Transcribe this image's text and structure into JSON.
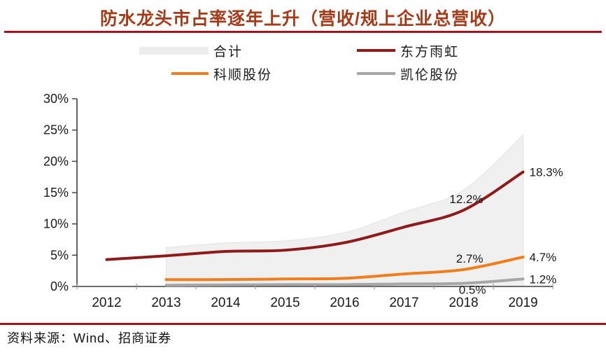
{
  "title": "防水龙头市占率逐年上升（营收/规上企业总营收）",
  "source": "资料来源：Wind、招商证券",
  "colors": {
    "title_accent": "#a43a17",
    "rule_red": "#a31518",
    "yuhong_red": "#8e1b1b",
    "keshun_orange": "#ee7e1e",
    "kailun_gray": "#a6a6a6",
    "total_area_fill": "#f0f0f0",
    "axis": "#3d3d3d",
    "text": "#1a1a1a"
  },
  "legend": {
    "items": [
      {
        "label": "合计",
        "color": "#ececec",
        "swatch": "area"
      },
      {
        "label": "东方雨虹",
        "color": "#8e1b1b",
        "swatch": "line"
      },
      {
        "label": "科顺股份",
        "color": "#ee7e1e",
        "swatch": "line"
      },
      {
        "label": "凯伦股份",
        "color": "#a6a6a6",
        "swatch": "line"
      }
    ]
  },
  "chart_data": {
    "type": "line",
    "title": "防水龙头市占率逐年上升（营收/规上企业总营收）",
    "xlabel": "",
    "ylabel": "",
    "categories": [
      "2012",
      "2013",
      "2014",
      "2015",
      "2016",
      "2017",
      "2018",
      "2019"
    ],
    "ylim": [
      0,
      30
    ],
    "yticks": [
      "0%",
      "5%",
      "10%",
      "15%",
      "20%",
      "25%",
      "30%"
    ],
    "grid": false,
    "legend_position": "top",
    "series": [
      {
        "name": "合计",
        "style": "area",
        "color": "#f0f0f0",
        "values": [
          null,
          6.2,
          6.95,
          7.3,
          8.6,
          11.9,
          15.4,
          24.2
        ]
      },
      {
        "name": "东方雨虹",
        "style": "line",
        "color": "#8e1b1b",
        "values": [
          4.3,
          4.9,
          5.6,
          5.8,
          7.0,
          9.5,
          12.2,
          18.3
        ]
      },
      {
        "name": "科顺股份",
        "style": "line",
        "color": "#ee7e1e",
        "values": [
          null,
          1.1,
          1.1,
          1.2,
          1.3,
          2.0,
          2.7,
          4.7
        ]
      },
      {
        "name": "凯伦股份",
        "style": "line",
        "color": "#a6a6a6",
        "values": [
          null,
          0.2,
          0.25,
          0.3,
          0.3,
          0.4,
          0.5,
          1.2
        ]
      }
    ],
    "annotations": [
      {
        "series": "东方雨虹",
        "category": "2018",
        "text": "12.2%",
        "placement": "above-left"
      },
      {
        "series": "东方雨虹",
        "category": "2019",
        "text": "18.3%",
        "placement": "right"
      },
      {
        "series": "科顺股份",
        "category": "2018",
        "text": "2.7%",
        "placement": "above-left"
      },
      {
        "series": "科顺股份",
        "category": "2019",
        "text": "4.7%",
        "placement": "right"
      },
      {
        "series": "凯伦股份",
        "category": "2018",
        "text": "0.5%",
        "placement": "below-left"
      },
      {
        "series": "凯伦股份",
        "category": "2019",
        "text": "1.2%",
        "placement": "right"
      }
    ]
  }
}
